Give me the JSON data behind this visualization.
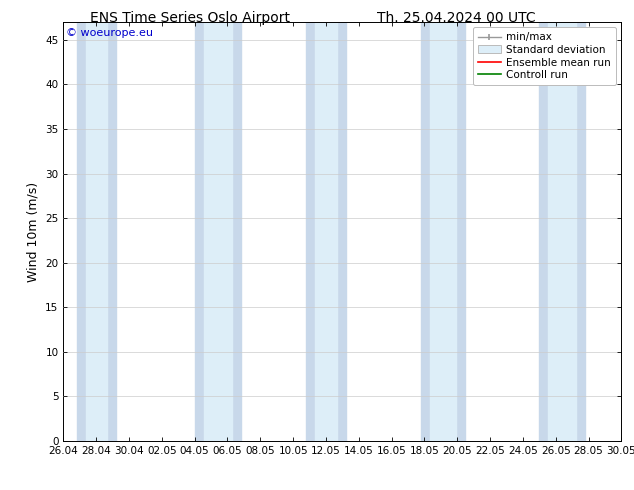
{
  "title_left": "ENS Time Series Oslo Airport",
  "title_right": "Th. 25.04.2024 00 UTC",
  "ylabel": "Wind 10m (m/s)",
  "ylim": [
    0,
    47
  ],
  "yticks": [
    0,
    5,
    10,
    15,
    20,
    25,
    30,
    35,
    40,
    45
  ],
  "xtick_labels": [
    "26.04",
    "28.04",
    "30.04",
    "02.05",
    "04.05",
    "06.05",
    "08.05",
    "10.05",
    "12.05",
    "14.05",
    "16.05",
    "18.05",
    "20.05",
    "22.05",
    "24.05",
    "26.05",
    "28.05",
    "30.05"
  ],
  "watermark": "© woeurope.eu",
  "watermark_color": "#0000cc",
  "bg_color": "#ffffff",
  "plot_bg_color": "#ffffff",
  "band_color_minmax": "#c8d8ea",
  "band_color_std": "#ddeef8",
  "ensemble_mean_color": "#ff0000",
  "control_run_color": "#008000",
  "legend_labels": [
    "min/max",
    "Standard deviation",
    "Ensemble mean run",
    "Controll run"
  ],
  "title_fontsize": 10,
  "axis_label_fontsize": 9,
  "tick_fontsize": 7.5,
  "legend_fontsize": 7.5,
  "watermark_fontsize": 8,
  "band_data": [
    [
      0.8,
      3.2
    ],
    [
      8.0,
      10.8
    ],
    [
      14.8,
      17.2
    ],
    [
      21.8,
      24.5
    ],
    [
      29.0,
      31.8
    ]
  ]
}
